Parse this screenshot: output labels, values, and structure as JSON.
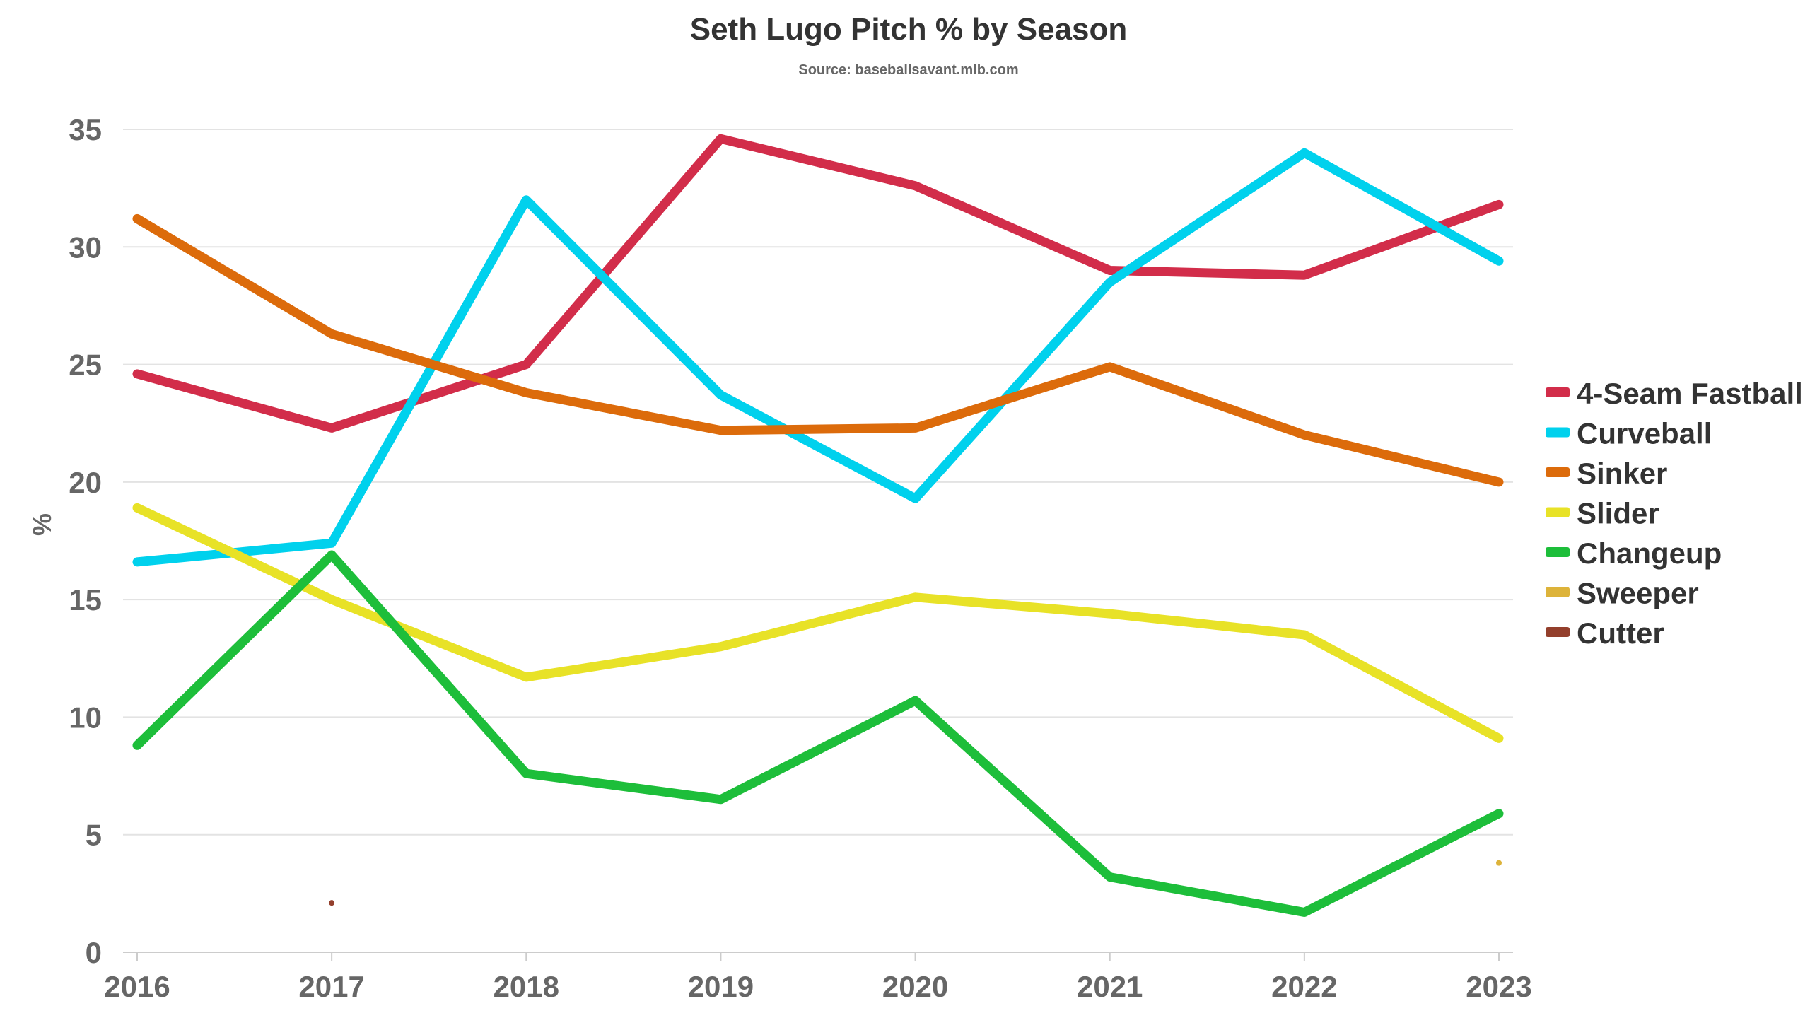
{
  "chart_data": {
    "type": "line",
    "title": "Seth Lugo Pitch % by Season",
    "subtitle": "Source: baseballsavant.mlb.com",
    "xlabel": "",
    "ylabel": "%",
    "x": [
      "2016",
      "2017",
      "2018",
      "2019",
      "2020",
      "2021",
      "2022",
      "2023"
    ],
    "ylim": [
      0,
      35
    ],
    "yticks": [
      0,
      5,
      10,
      15,
      20,
      25,
      30,
      35
    ],
    "grid": true,
    "legend_position": "right",
    "series": [
      {
        "name": "4-Seam Fastball",
        "color": "#d22d4a",
        "values": [
          24.6,
          22.3,
          25.0,
          34.6,
          32.6,
          29.0,
          28.8,
          31.8
        ]
      },
      {
        "name": "Curveball",
        "color": "#00d1ed",
        "values": [
          16.6,
          17.4,
          32.0,
          23.7,
          19.3,
          28.5,
          34.0,
          29.4
        ]
      },
      {
        "name": "Sinker",
        "color": "#dc6b0b",
        "values": [
          31.2,
          26.3,
          23.8,
          22.2,
          22.3,
          24.9,
          22.0,
          20.0
        ]
      },
      {
        "name": "Slider",
        "color": "#e8e227",
        "values": [
          18.9,
          15.0,
          11.7,
          13.0,
          15.1,
          14.4,
          13.5,
          9.1
        ]
      },
      {
        "name": "Changeup",
        "color": "#1dbe3a",
        "values": [
          8.8,
          16.9,
          7.6,
          6.5,
          10.7,
          3.2,
          1.7,
          5.9
        ]
      },
      {
        "name": "Sweeper",
        "color": "#ddb33a",
        "values": [
          null,
          null,
          null,
          null,
          null,
          null,
          null,
          3.8
        ]
      },
      {
        "name": "Cutter",
        "color": "#933f2c",
        "values": [
          null,
          2.1,
          null,
          null,
          null,
          null,
          null,
          null
        ]
      }
    ]
  }
}
